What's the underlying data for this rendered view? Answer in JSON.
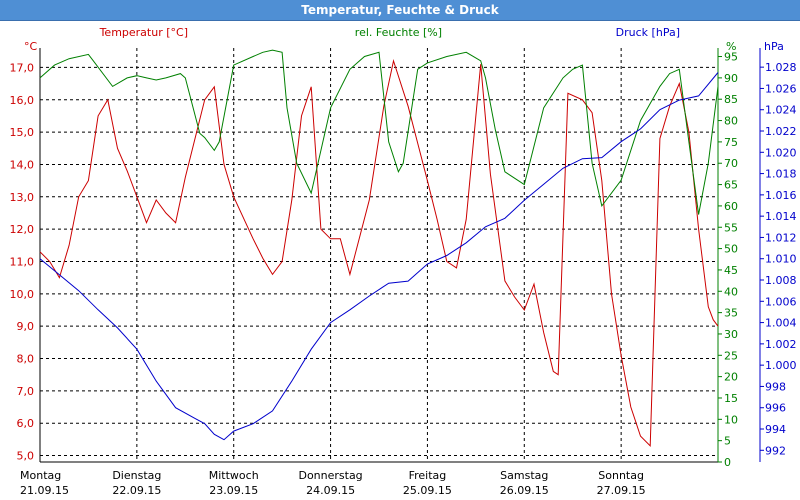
{
  "window": {
    "title": "Temperatur, Feuchte & Druck"
  },
  "colors": {
    "temperature": "#cc0000",
    "humidity": "#008000",
    "pressure": "#0000cc",
    "grid": "#000000",
    "titlebar": "#4f8fd4"
  },
  "chart_data": {
    "type": "line",
    "title": "Temperatur, Feuchte & Druck",
    "grid": true,
    "x_ticks": [
      {
        "day": "Montag",
        "date": "21.09.15"
      },
      {
        "day": "Dienstag",
        "date": "22.09.15"
      },
      {
        "day": "Mittwoch",
        "date": "23.09.15"
      },
      {
        "day": "Donnerstag",
        "date": "24.09.15"
      },
      {
        "day": "Freitag",
        "date": "25.09.15"
      },
      {
        "day": "Samstag",
        "date": "26.09.15"
      },
      {
        "day": "Sonntag",
        "date": "27.09.15"
      }
    ],
    "x_range_days": [
      0,
      7
    ],
    "axes": {
      "temperature": {
        "label": "Temperatur [°C]",
        "unit": "°C",
        "ylim": [
          4.8,
          17.6
        ],
        "ticks": [
          "5,0",
          "6,0",
          "7,0",
          "8,0",
          "9,0",
          "10,0",
          "11,0",
          "12,0",
          "13,0",
          "14,0",
          "15,0",
          "16,0",
          "17,0"
        ]
      },
      "humidity": {
        "label": "rel. Feuchte [%]",
        "unit": "%",
        "ylim": [
          0,
          97
        ],
        "ticks": [
          "0",
          "5",
          "10",
          "15",
          "20",
          "25",
          "30",
          "35",
          "40",
          "45",
          "50",
          "55",
          "60",
          "65",
          "70",
          "75",
          "80",
          "85",
          "90",
          "95"
        ]
      },
      "pressure": {
        "unit": "hPa",
        "label": "Druck [hPa]",
        "ylim": [
          990.9,
          1029.8
        ],
        "ticks": [
          "992",
          "994",
          "996",
          "998",
          "1.000",
          "1.002",
          "1.004",
          "1.006",
          "1.008",
          "1.010",
          "1.012",
          "1.014",
          "1.016",
          "1.018",
          "1.020",
          "1.022",
          "1.024",
          "1.026",
          "1.028"
        ]
      }
    },
    "series": [
      {
        "name": "Temperatur [°C]",
        "axis": "temperature",
        "x": [
          0,
          0.1,
          0.2,
          0.3,
          0.4,
          0.5,
          0.6,
          0.7,
          0.8,
          0.9,
          1.0,
          1.1,
          1.2,
          1.3,
          1.4,
          1.5,
          1.6,
          1.7,
          1.8,
          1.9,
          2.0,
          2.2,
          2.3,
          2.4,
          2.5,
          2.6,
          2.7,
          2.8,
          2.9,
          3.0,
          3.1,
          3.2,
          3.4,
          3.55,
          3.65,
          3.8,
          4.0,
          4.1,
          4.2,
          4.3,
          4.4,
          4.55,
          4.65,
          4.8,
          4.9,
          5.0,
          5.1,
          5.2,
          5.3,
          5.35,
          5.45,
          5.6,
          5.7,
          5.8,
          5.9,
          6.0,
          6.1,
          6.2,
          6.3,
          6.4,
          6.5,
          6.6,
          6.7,
          6.8,
          6.9,
          6.95,
          7.0
        ],
        "y": [
          11.3,
          11.0,
          10.5,
          11.5,
          13.0,
          13.5,
          15.5,
          16.0,
          14.5,
          13.8,
          13.0,
          12.2,
          12.9,
          12.5,
          12.2,
          13.6,
          14.8,
          16.0,
          16.4,
          14.0,
          13.0,
          11.7,
          11.1,
          10.6,
          11.0,
          12.9,
          15.5,
          16.4,
          12.0,
          11.7,
          11.7,
          10.6,
          12.9,
          15.8,
          17.2,
          15.8,
          13.5,
          12.3,
          11.0,
          10.8,
          12.3,
          17.1,
          13.7,
          10.4,
          9.9,
          9.5,
          10.3,
          8.8,
          7.6,
          7.5,
          16.2,
          16.0,
          15.6,
          13.5,
          10.0,
          8.1,
          6.5,
          5.6,
          5.3,
          14.8,
          15.8,
          16.5,
          15.0,
          12.0,
          9.6,
          9.2,
          9.0
        ]
      },
      {
        "name": "rel. Feuchte [%]",
        "axis": "humidity",
        "x": [
          0,
          0.15,
          0.3,
          0.5,
          0.55,
          0.75,
          0.9,
          1.0,
          1.1,
          1.2,
          1.3,
          1.45,
          1.5,
          1.65,
          1.7,
          1.8,
          1.85,
          2.0,
          2.2,
          2.3,
          2.4,
          2.5,
          2.55,
          2.65,
          2.8,
          3.0,
          3.2,
          3.35,
          3.5,
          3.6,
          3.7,
          3.75,
          3.9,
          4.0,
          4.2,
          4.4,
          4.55,
          4.6,
          4.7,
          4.8,
          5.0,
          5.2,
          5.4,
          5.5,
          5.6,
          5.7,
          5.8,
          5.9,
          6.0,
          6.2,
          6.4,
          6.5,
          6.6,
          6.7,
          6.8,
          6.9,
          7.0
        ],
        "y": [
          90,
          93,
          94.5,
          95.5,
          94,
          88,
          90,
          90.5,
          90,
          89.5,
          90,
          91,
          90,
          77,
          76,
          73,
          75,
          93,
          95,
          96,
          96.5,
          96,
          83,
          70,
          63,
          83,
          92,
          95,
          96,
          75,
          68,
          70,
          92,
          93.5,
          95,
          96,
          94,
          90,
          78,
          68,
          65,
          83,
          90,
          92,
          93,
          70,
          60,
          63,
          66,
          80,
          88,
          91,
          92,
          75,
          58,
          70,
          88
        ]
      },
      {
        "name": "Druck [hPa]",
        "axis": "pressure",
        "x": [
          0,
          0.2,
          0.4,
          0.6,
          0.8,
          1.0,
          1.2,
          1.4,
          1.6,
          1.7,
          1.8,
          1.9,
          2.0,
          2.2,
          2.4,
          2.6,
          2.8,
          3.0,
          3.2,
          3.4,
          3.6,
          3.8,
          4.0,
          4.2,
          4.4,
          4.6,
          4.8,
          5.0,
          5.2,
          5.4,
          5.6,
          5.8,
          6.0,
          6.2,
          6.4,
          6.6,
          6.8,
          7.0
        ],
        "y": [
          1010.0,
          1008.5,
          1007.0,
          1005.2,
          1003.5,
          1001.5,
          998.5,
          996.0,
          995.0,
          994.5,
          993.5,
          993.0,
          993.8,
          994.5,
          995.7,
          998.5,
          1001.5,
          1004.0,
          1005.2,
          1006.5,
          1007.7,
          1007.9,
          1009.5,
          1010.3,
          1011.5,
          1013.0,
          1013.8,
          1015.5,
          1017.0,
          1018.5,
          1019.4,
          1019.5,
          1021.0,
          1022.2,
          1024.0,
          1024.9,
          1025.3,
          1027.5
        ]
      }
    ]
  }
}
